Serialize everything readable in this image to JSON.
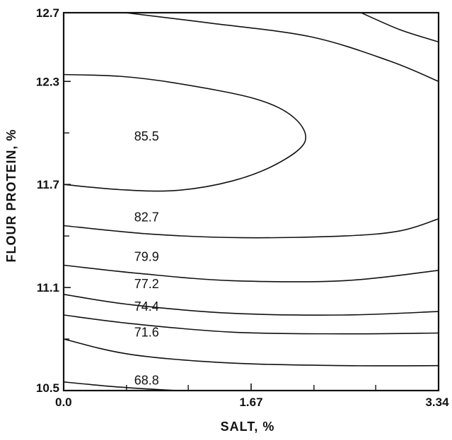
{
  "chart_data": {
    "type": "contour",
    "xlabel": "SALT, %",
    "ylabel": "FLOUR PROTEIN, %",
    "xlim": [
      0.0,
      3.34
    ],
    "ylim": [
      10.5,
      12.7
    ],
    "x_ticks": [
      {
        "value": 0.0,
        "label": "0.0"
      },
      {
        "value": 1.67,
        "label": "1.67"
      },
      {
        "value": 3.34,
        "label": "3.34"
      }
    ],
    "y_ticks": [
      {
        "value": 10.5,
        "label": "10.5"
      },
      {
        "value": 11.1,
        "label": "11.1"
      },
      {
        "value": 11.7,
        "label": "11.7"
      },
      {
        "value": 12.3,
        "label": "12.3"
      },
      {
        "value": 12.7,
        "label": "12.7"
      }
    ],
    "x_minor_ticks": [
      0.56,
      1.11,
      2.23,
      2.78
    ],
    "y_minor_ticks": [
      10.8,
      11.4,
      12.0
    ],
    "contours": [
      {
        "level": "68.8",
        "points": [
          [
            0.0,
            10.55
          ],
          [
            0.5,
            10.52
          ],
          [
            1.0,
            10.5
          ]
        ],
        "label_at": [
          0.55,
          10.56
        ]
      },
      {
        "level": "71.6",
        "points": [
          [
            0.0,
            10.8
          ],
          [
            0.6,
            10.71
          ],
          [
            1.5,
            10.66
          ],
          [
            2.5,
            10.645
          ],
          [
            3.34,
            10.645
          ]
        ],
        "label_at": [
          0.55,
          10.84
        ]
      },
      {
        "level": "74.4",
        "points": [
          [
            0.0,
            10.94
          ],
          [
            0.6,
            10.89
          ],
          [
            1.5,
            10.84
          ],
          [
            2.5,
            10.83
          ],
          [
            3.34,
            10.835
          ]
        ],
        "label_at": [
          0.55,
          10.99
        ]
      },
      {
        "level": "77.2",
        "points": [
          [
            0.0,
            11.06
          ],
          [
            0.6,
            11.0
          ],
          [
            1.5,
            10.95
          ],
          [
            2.5,
            10.94
          ],
          [
            3.34,
            10.96
          ]
        ],
        "label_at": [
          0.55,
          11.12
        ]
      },
      {
        "level": "79.9",
        "points": [
          [
            0.0,
            11.23
          ],
          [
            0.7,
            11.18
          ],
          [
            1.5,
            11.14
          ],
          [
            2.5,
            11.14
          ],
          [
            3.34,
            11.2
          ]
        ],
        "label_at": [
          0.55,
          11.28
        ]
      },
      {
        "level": "82.7",
        "points": [
          [
            0.0,
            11.46
          ],
          [
            0.8,
            11.41
          ],
          [
            1.6,
            11.39
          ],
          [
            2.5,
            11.4
          ],
          [
            3.0,
            11.43
          ],
          [
            3.34,
            11.5
          ]
        ],
        "label_at": [
          0.55,
          11.51
        ]
      },
      {
        "level": "85.5",
        "points": [
          [
            0.0,
            11.7
          ],
          [
            0.5,
            11.67
          ],
          [
            1.0,
            11.665
          ],
          [
            1.5,
            11.72
          ],
          [
            1.9,
            11.82
          ],
          [
            2.15,
            11.95
          ],
          [
            2.05,
            12.09
          ],
          [
            1.7,
            12.2
          ],
          [
            1.0,
            12.29
          ],
          [
            0.5,
            12.33
          ],
          [
            0.0,
            12.34
          ]
        ],
        "label_at": [
          0.55,
          11.98
        ]
      },
      {
        "level": "",
        "points": [
          [
            0.55,
            12.7
          ],
          [
            1.3,
            12.64
          ],
          [
            2.2,
            12.56
          ],
          [
            2.9,
            12.42
          ],
          [
            3.34,
            12.3
          ]
        ],
        "label_at": null
      },
      {
        "level": "",
        "points": [
          [
            2.65,
            12.7
          ],
          [
            3.0,
            12.6
          ],
          [
            3.34,
            12.53
          ]
        ],
        "label_at": null
      }
    ]
  }
}
